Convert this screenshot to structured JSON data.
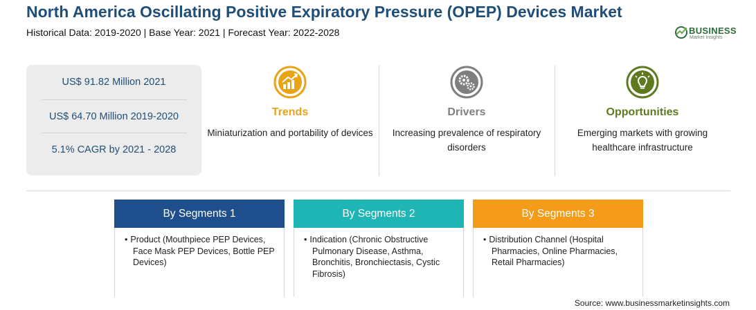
{
  "header": {
    "title": "North America Oscillating Positive Expiratory Pressure (OPEP) Devices Market",
    "subtitle": "Historical Data: 2019-2020 | Base Year: 2021 | Forecast Year: 2022-2028"
  },
  "logo": {
    "line1": "BUSINESS",
    "line2": "Market Insights"
  },
  "stats": [
    "US$ 91.82 Million 2021",
    "US$ 64.70 Million 2019-2020",
    "5.1% CAGR by 2021 - 2028"
  ],
  "factors": [
    {
      "heading": "Trends",
      "color": "#e8a317",
      "icon": "chart-up-icon",
      "text": "Miniaturization and portability of devices"
    },
    {
      "heading": "Drivers",
      "color": "#7f7f7f",
      "icon": "gears-icon",
      "text": "Increasing prevalence of respiratory disorders"
    },
    {
      "heading": "Opportunities",
      "color": "#5e7a1f",
      "icon": "lightbulb-icon",
      "text": "Emerging markets with growing healthcare infrastructure"
    }
  ],
  "segments": [
    {
      "title": "By Segments 1",
      "color": "#1f4e8c",
      "item": "Product (Mouthpiece PEP Devices, Face Mask PEP Devices, Bottle PEP Devices)"
    },
    {
      "title": "By Segments 2",
      "color": "#20b5b5",
      "item": "Indication (Chronic Obstructive Pulmonary Disease, Asthma, Bronchitis, Bronchiectasis, Cystic Fibrosis)"
    },
    {
      "title": "By Segments 3",
      "color": "#f49c1a",
      "item": "Distribution Channel (Hospital Pharmacies, Online Pharmacies, Retail Pharmacies)"
    }
  ],
  "footer": {
    "source": "Source: www.businessmarketinsights.com"
  }
}
